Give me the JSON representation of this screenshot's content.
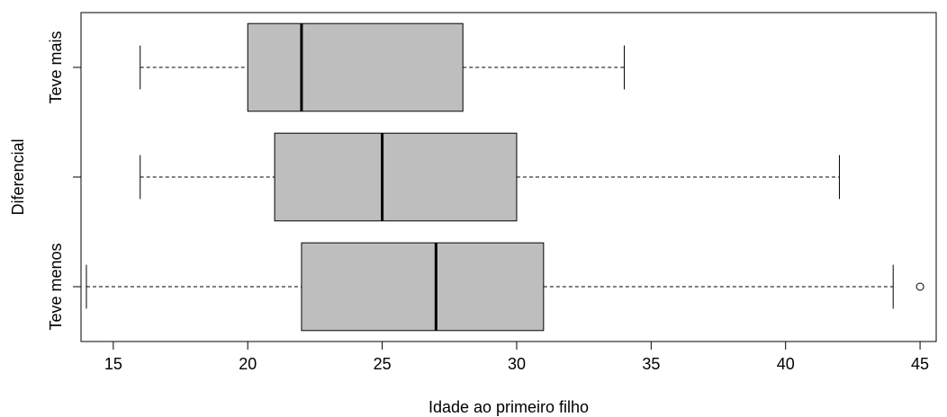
{
  "chart_data": {
    "type": "boxplot",
    "orientation": "horizontal",
    "title": "",
    "xlabel": "Idade ao primeiro filho",
    "ylabel": "Diferencial",
    "xlim": [
      13.8,
      45.6
    ],
    "x_ticks": [
      15,
      20,
      25,
      30,
      35,
      40,
      45
    ],
    "x_tick_labels": [
      "15",
      "20",
      "25",
      "30",
      "35",
      "40",
      "45"
    ],
    "categories": [
      "Teve menos",
      "",
      "Teve mais"
    ],
    "boxes": [
      {
        "label": "Teve menos",
        "whisker_low": 14,
        "q1": 22,
        "median": 27,
        "q3": 31,
        "whisker_high": 44,
        "outliers": [
          45
        ]
      },
      {
        "label": "",
        "whisker_low": 16,
        "q1": 21,
        "median": 25,
        "q3": 30,
        "whisker_high": 42,
        "outliers": []
      },
      {
        "label": "Teve mais",
        "whisker_low": 16,
        "q1": 20,
        "median": 22,
        "q3": 28,
        "whisker_high": 34,
        "outliers": []
      }
    ],
    "box_fill": "#bebebe",
    "grid": false,
    "legend": "none"
  }
}
